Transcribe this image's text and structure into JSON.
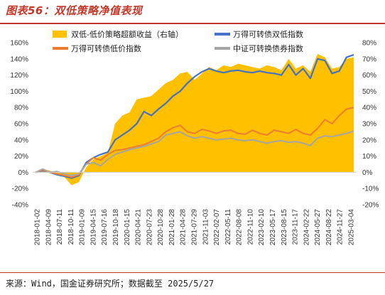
{
  "header": {
    "title": "图表56：双低策略净值表现"
  },
  "footer": {
    "source": "来源：Wind，国金证券研究所；数据截至 2025/5/27"
  },
  "chart_data": {
    "type": "line",
    "title": "",
    "legend_placement": "top",
    "grid": false,
    "x_tick_labels": [
      "2018-01-02",
      "2018-04-09",
      "2018-07-11",
      "2018-10-11",
      "2019-01-09",
      "2019-04-15",
      "2019-07-16",
      "2019-10-18",
      "2020-01-15",
      "2020-04-21",
      "2020-07-23",
      "2020-10-28",
      "2021-01-28",
      "2021-04-28",
      "2021-07-29",
      "2021-11-03",
      "2022-02-07",
      "2022-05-11",
      "2022-08-08",
      "2022-11-10",
      "2023-02-10",
      "2023-05-17",
      "2023-08-15",
      "2023-11-17",
      "2024-02-22",
      "2024-05-27",
      "2024-08-22",
      "2024-11-27",
      "2025-03-04"
    ],
    "y_left": {
      "ticks": [
        "-40%",
        "-20%",
        "0%",
        "20%",
        "40%",
        "60%",
        "80%",
        "100%",
        "120%",
        "140%",
        "160%"
      ],
      "range": [
        -40,
        160
      ],
      "unit": "%"
    },
    "y_right": {
      "ticks": [
        "-20%",
        "-10%",
        "0%",
        "10%",
        "20%",
        "30%",
        "40%",
        "50%",
        "60%",
        "70%",
        "80%"
      ],
      "range": [
        -20,
        80
      ],
      "unit": "%"
    },
    "series": [
      {
        "name": "双低-低价策略超额收益（右轴）",
        "kind": "area",
        "axis": "right",
        "color": "#ffc000",
        "values": [
          0,
          2,
          1,
          -1,
          -3,
          -8,
          -6,
          3,
          8,
          10,
          12,
          30,
          35,
          37,
          45,
          46,
          47,
          51,
          55,
          57,
          61,
          62,
          57,
          61,
          65,
          63,
          66,
          65,
          67,
          66,
          65,
          64,
          66,
          65,
          63,
          70,
          64,
          66,
          62,
          73,
          71,
          64,
          65,
          70,
          71
        ]
      },
      {
        "name": "万得可转债双低指数",
        "kind": "line",
        "axis": "left",
        "color": "#4472c4",
        "values": [
          0,
          2,
          0,
          -3,
          -5,
          -7,
          -4,
          12,
          18,
          22,
          25,
          40,
          46,
          52,
          60,
          75,
          70,
          78,
          85,
          94,
          100,
          110,
          118,
          124,
          128,
          125,
          123,
          125,
          126,
          124,
          123,
          125,
          123,
          122,
          120,
          133,
          120,
          128,
          116,
          140,
          138,
          122,
          125,
          142,
          145
        ]
      },
      {
        "name": "万得可转债低价指数",
        "kind": "line",
        "axis": "left",
        "color": "#ed7d31",
        "values": [
          0,
          3,
          0,
          -2,
          -4,
          -6,
          -3,
          10,
          18,
          15,
          22,
          27,
          28,
          30,
          32,
          34,
          38,
          42,
          50,
          55,
          58,
          50,
          48,
          53,
          51,
          48,
          51,
          52,
          48,
          47,
          52,
          48,
          46,
          52,
          50,
          48,
          53,
          48,
          46,
          54,
          65,
          60,
          70,
          78,
          80
        ]
      },
      {
        "name": "中证可转换债券指数",
        "kind": "line",
        "axis": "left",
        "color": "#a5a5a5",
        "values": [
          0,
          4,
          0,
          1,
          -2,
          -4,
          -2,
          10,
          12,
          8,
          16,
          22,
          25,
          28,
          30,
          32,
          35,
          38,
          46,
          48,
          50,
          45,
          42,
          44,
          42,
          40,
          41,
          42,
          40,
          39,
          40,
          38,
          36,
          38,
          39,
          37,
          38,
          36,
          33,
          42,
          45,
          44,
          46,
          48,
          51
        ]
      }
    ]
  }
}
